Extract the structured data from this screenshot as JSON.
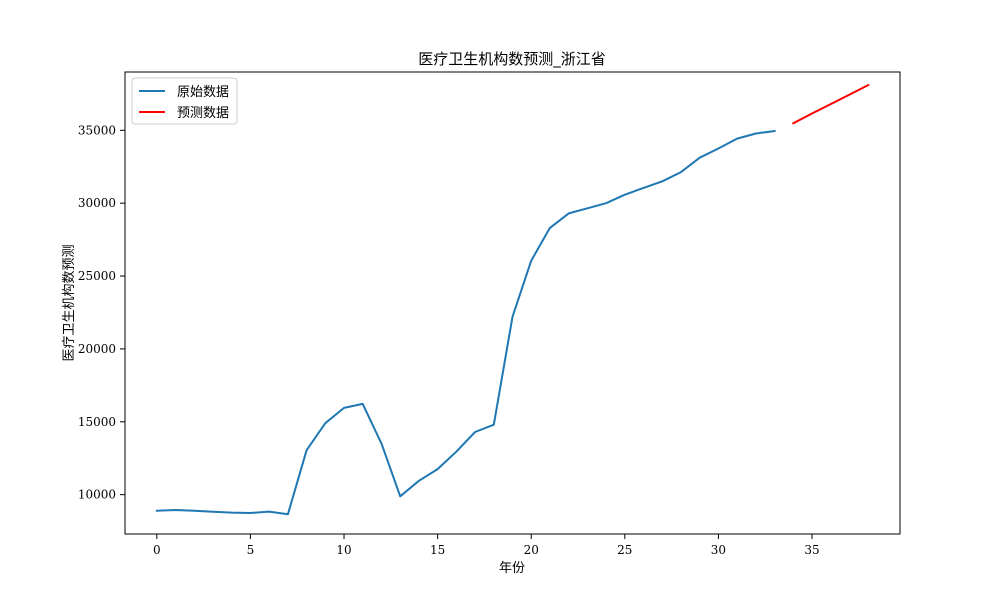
{
  "chart_data": {
    "type": "line",
    "title": "医疗卫生机构数预测_浙江省",
    "xlabel": "年份",
    "ylabel": "医疗卫生机构数预测",
    "xlim": [
      -1.7,
      39.7
    ],
    "ylim": [
      7300,
      39000
    ],
    "xticks": [
      0,
      5,
      10,
      15,
      20,
      25,
      30,
      35
    ],
    "yticks": [
      10000,
      15000,
      20000,
      25000,
      30000,
      35000
    ],
    "grid": false,
    "legend_position": "top-left",
    "series": [
      {
        "name": "原始数据",
        "color": "#1f77b4",
        "x": [
          0,
          1,
          2,
          3,
          4,
          5,
          6,
          7,
          8,
          9,
          10,
          11,
          12,
          13,
          14,
          15,
          16,
          17,
          18,
          19,
          20,
          21,
          22,
          23,
          24,
          25,
          26,
          27,
          28,
          29,
          30,
          31,
          32,
          33
        ],
        "y": [
          8900,
          8950,
          8900,
          8830,
          8770,
          8740,
          8840,
          8650,
          13050,
          14900,
          15950,
          16230,
          13500,
          9890,
          10950,
          11750,
          12950,
          14300,
          14800,
          22200,
          26050,
          28300,
          29300,
          29650,
          30000,
          30580,
          31050,
          31500,
          32130,
          33120,
          33750,
          34430,
          34780,
          34950
        ]
      },
      {
        "name": "预测数据",
        "color": "#ff0000",
        "x": [
          34,
          35,
          36,
          37,
          38
        ],
        "y": [
          35480,
          36150,
          36800,
          37450,
          38100
        ]
      }
    ]
  }
}
